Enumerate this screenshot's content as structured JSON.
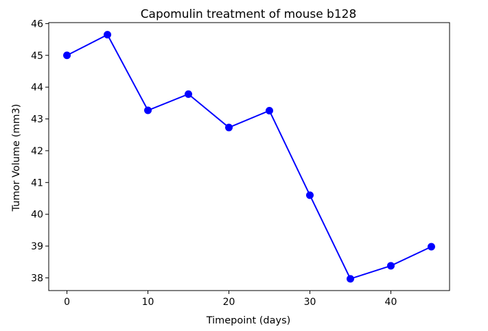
{
  "chart_data": {
    "type": "line",
    "title": "Capomulin treatment of mouse b128",
    "xlabel": "Timepoint (days)",
    "ylabel": "Tumor Volume (mm3)",
    "x": [
      0,
      5,
      10,
      15,
      20,
      25,
      30,
      35,
      40,
      45
    ],
    "series": [
      {
        "values": [
          45.0,
          45.65,
          43.27,
          43.78,
          42.73,
          43.26,
          40.6,
          37.97,
          38.38,
          38.98
        ],
        "color": "#0000ff",
        "marker": "circle"
      }
    ],
    "xlim": [
      -2.25,
      47.25
    ],
    "ylim": [
      37.6,
      46.03
    ],
    "xticks": [
      0,
      10,
      20,
      30,
      40
    ],
    "yticks": [
      38,
      39,
      40,
      41,
      42,
      43,
      44,
      45,
      46
    ],
    "grid": false,
    "legend": "none"
  }
}
